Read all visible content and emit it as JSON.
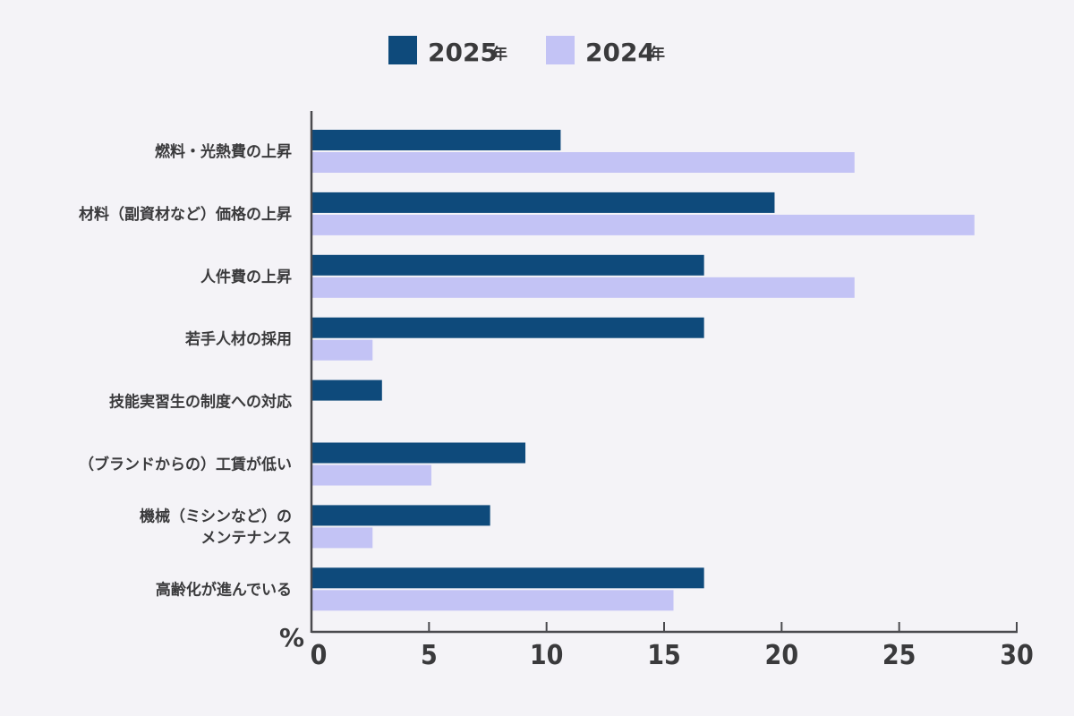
{
  "chart_data": {
    "type": "bar",
    "orientation": "horizontal",
    "categories": [
      [
        "燃料・光熱費の上昇"
      ],
      [
        "材料（副資材など）価格の上昇"
      ],
      [
        "人件費の上昇"
      ],
      [
        "若手人材の採用"
      ],
      [
        "技能実習生の制度への対応"
      ],
      [
        "（ブランドからの）工賃が低い"
      ],
      [
        "機械（ミシンなど）の",
        "メンテナンス"
      ],
      [
        "高齢化が進んでいる"
      ]
    ],
    "series": [
      {
        "name": "2025",
        "name_suffix": "年",
        "color": "#0e4a7b",
        "values": [
          10.6,
          19.7,
          16.7,
          16.7,
          3.0,
          9.1,
          7.6,
          16.7
        ]
      },
      {
        "name": "2024",
        "name_suffix": "年",
        "color": "#c3c3f5",
        "values": [
          23.1,
          28.2,
          23.1,
          2.6,
          0,
          5.1,
          2.6,
          15.4
        ]
      }
    ],
    "xlim": [
      0,
      30
    ],
    "xticks": [
      0,
      5,
      10,
      15,
      20,
      25,
      30
    ],
    "unit": "%",
    "legend_position": "top-center",
    "grid": false
  }
}
